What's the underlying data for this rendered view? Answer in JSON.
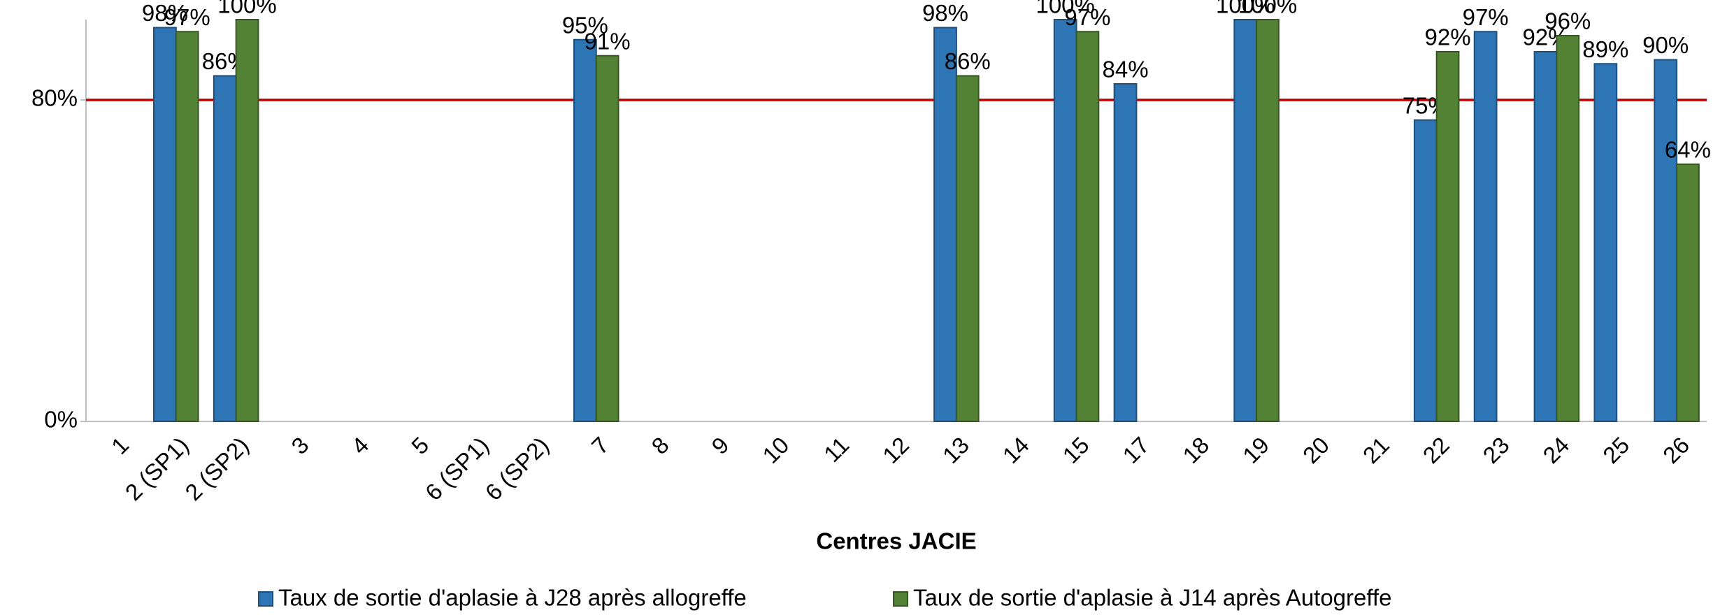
{
  "chart_data": {
    "type": "bar",
    "x_label": "Centres JACIE",
    "categories": [
      "1",
      "2 (SP1)",
      "2 (SP2)",
      "3",
      "4",
      "5",
      "6 (SP1)",
      "6 (SP2)",
      "7",
      "8",
      "9",
      "10",
      "11",
      "12",
      "13",
      "14",
      "15",
      "17",
      "18",
      "19",
      "20",
      "21",
      "22",
      "23",
      "24",
      "25",
      "26"
    ],
    "series": [
      {
        "name": "Taux de sortie d'aplasie à J28 après allogreffe",
        "color": "#2e75b6",
        "values": [
          null,
          98,
          86,
          null,
          null,
          null,
          null,
          null,
          95,
          null,
          null,
          null,
          null,
          null,
          98,
          null,
          100,
          84,
          null,
          100,
          null,
          null,
          75,
          97,
          92,
          89,
          90
        ],
        "value_labels": [
          null,
          "98%",
          "86%",
          null,
          null,
          null,
          null,
          null,
          "95%",
          null,
          null,
          null,
          null,
          null,
          "98%",
          null,
          "100%",
          "84%",
          null,
          "100%",
          null,
          null,
          "75%",
          "97%",
          "92%",
          "89%",
          "90%"
        ]
      },
      {
        "name": "Taux de sortie d'aplasie à J14 après Autogreffe",
        "color": "#548235",
        "values": [
          null,
          97,
          100,
          null,
          null,
          null,
          null,
          null,
          91,
          null,
          null,
          null,
          null,
          null,
          86,
          null,
          97,
          null,
          null,
          100,
          null,
          null,
          92,
          null,
          96,
          null,
          64
        ],
        "value_labels": [
          null,
          "97%",
          "100%",
          null,
          null,
          null,
          null,
          null,
          "91%",
          null,
          null,
          null,
          null,
          null,
          "86%",
          null,
          "97%",
          null,
          null,
          "100%",
          null,
          null,
          "92%",
          null,
          "96%",
          null,
          "64%"
        ]
      }
    ],
    "ylim": [
      0,
      100
    ],
    "yticks": [
      {
        "value": 0,
        "label": "0%"
      },
      {
        "value": 80,
        "label": "80%"
      }
    ],
    "reference_line": {
      "value": 80,
      "color": "#c00000"
    },
    "grid": false,
    "legend": "bottom"
  }
}
